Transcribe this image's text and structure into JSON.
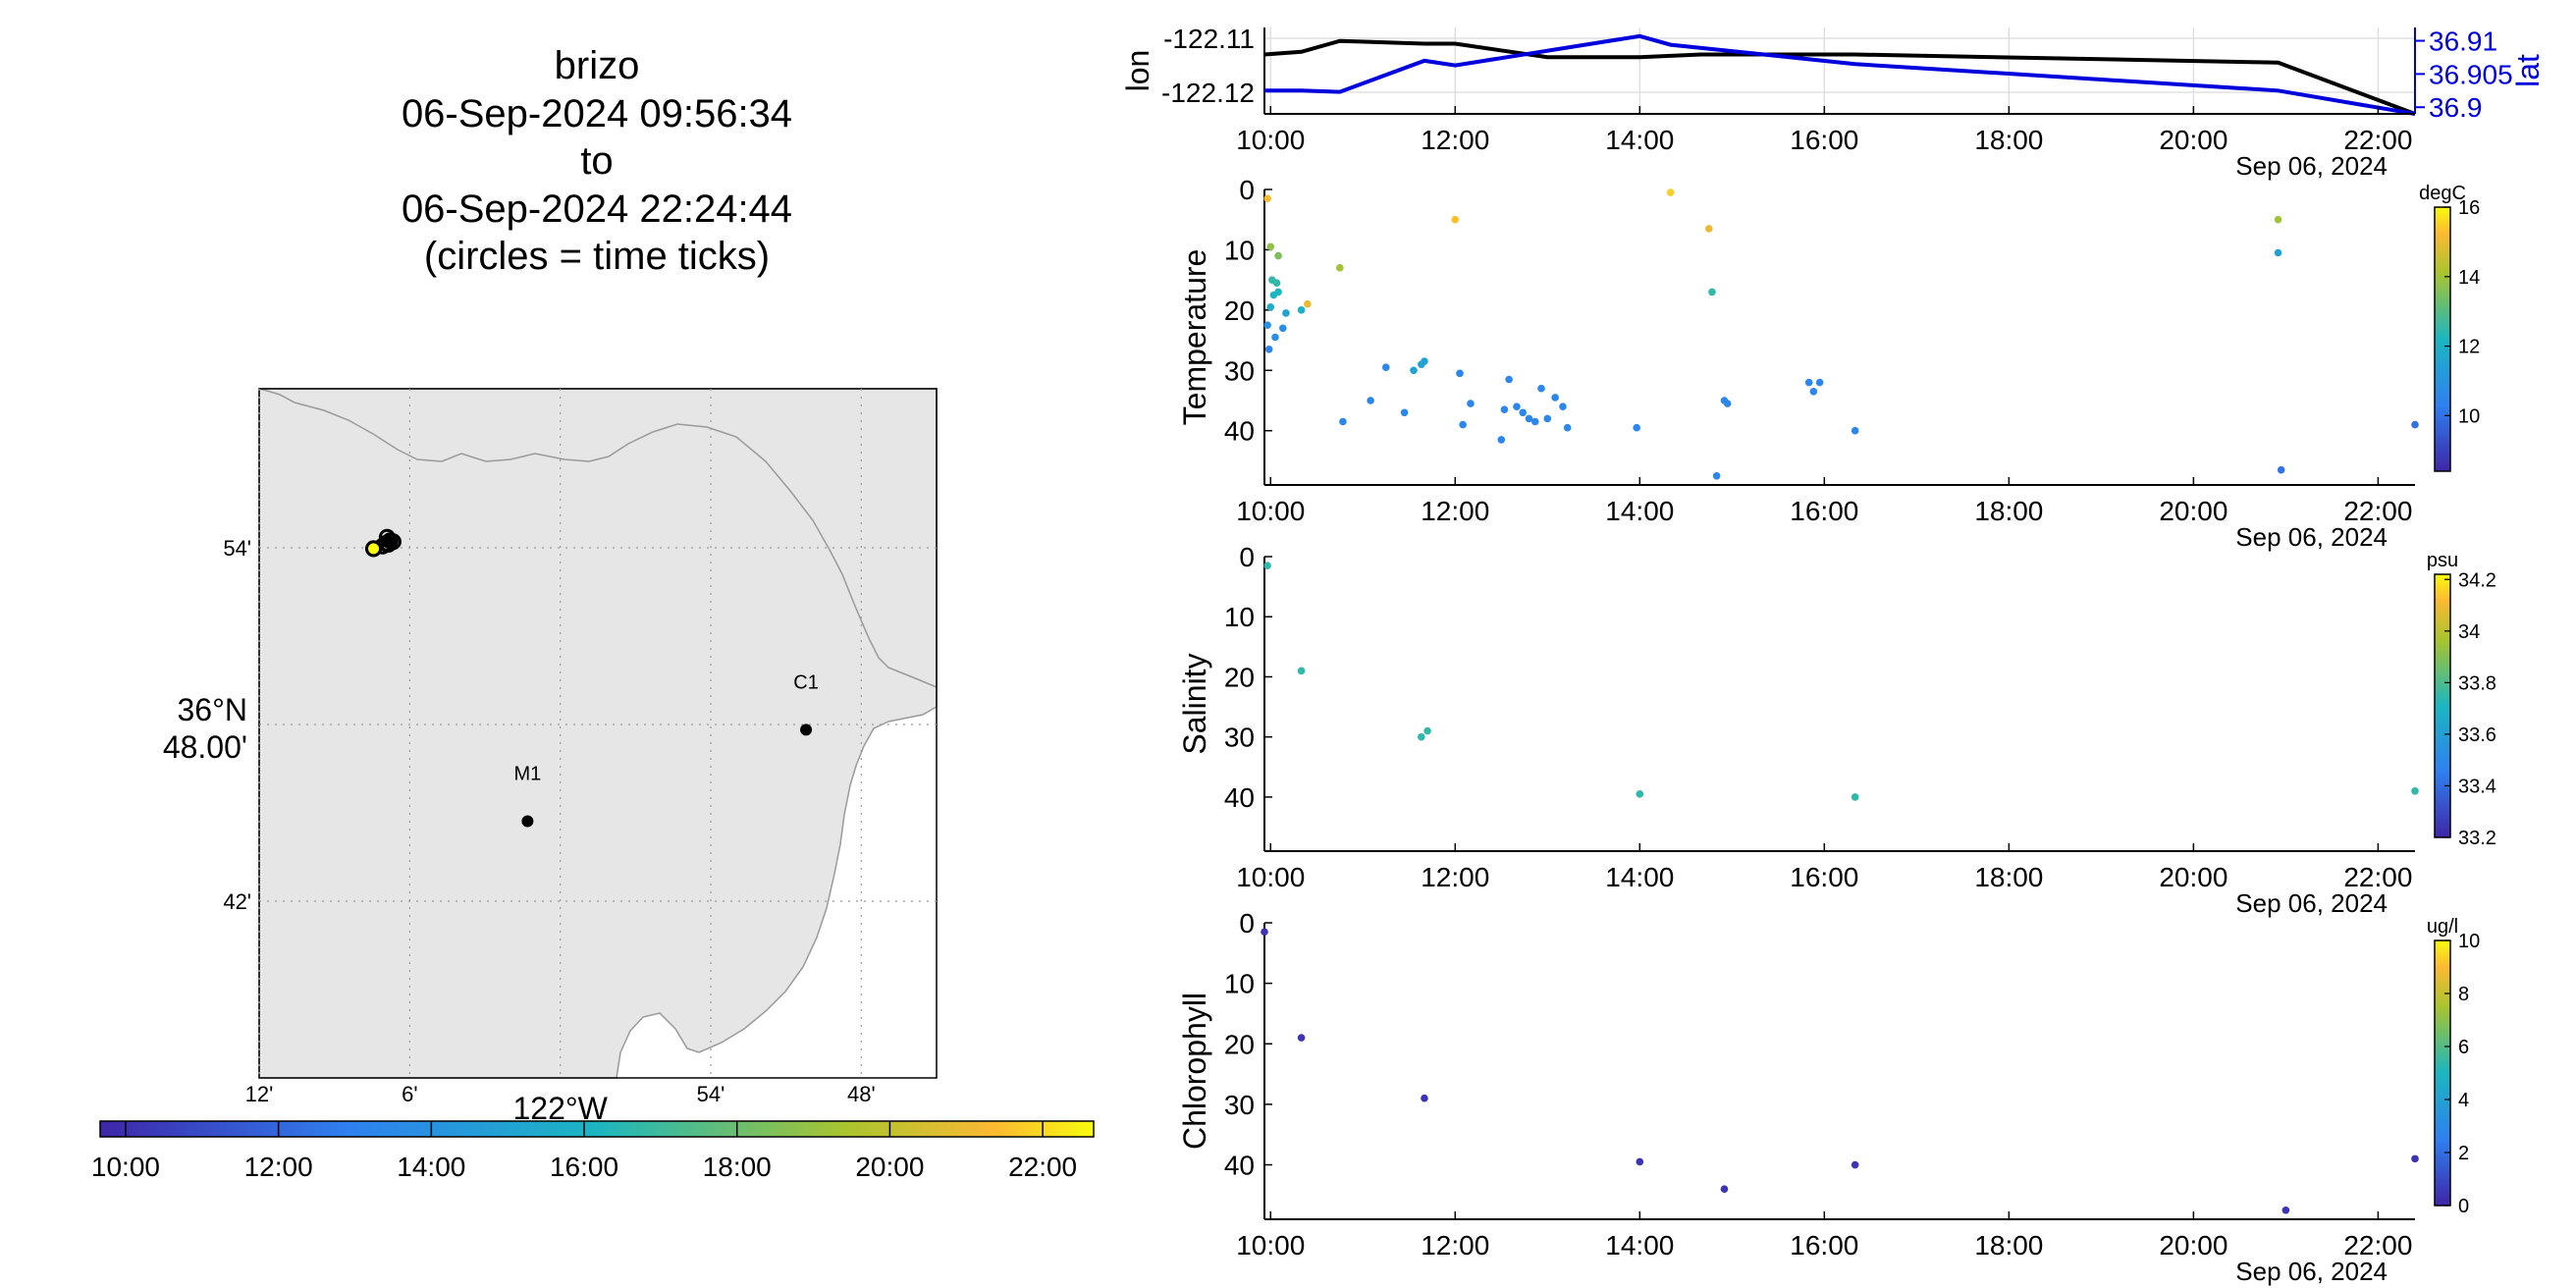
{
  "title": {
    "lines": [
      "brizo",
      "06-Sep-2024 09:56:34",
      "to",
      "06-Sep-2024 22:24:44",
      "(circles = time ticks)"
    ]
  },
  "map": {
    "lat_ticks": [
      "54'",
      "36°N 48.00'",
      "42'"
    ],
    "lat_values": [
      36.9,
      36.8,
      36.7
    ],
    "lon_ticks": [
      "12'",
      "6'",
      "122°W",
      "54'",
      "48'"
    ],
    "lon_values": [
      -122.2,
      -122.1,
      -122.0,
      -121.9,
      -121.8
    ],
    "lon_range": [
      -122.2,
      -121.75
    ],
    "lat_range": [
      36.6,
      36.99
    ],
    "stations": [
      {
        "name": "M1",
        "lon": -122.0217,
        "lat": 36.7453
      },
      {
        "name": "C1",
        "lon": -121.8367,
        "lat": 36.797
      }
    ],
    "track": [
      {
        "lon": -122.115,
        "lat": 36.906
      },
      {
        "lon": -122.113,
        "lat": 36.905
      },
      {
        "lon": -122.111,
        "lat": 36.903
      },
      {
        "lon": -122.112,
        "lat": 36.902
      },
      {
        "lon": -122.114,
        "lat": 36.903
      },
      {
        "lon": -122.116,
        "lat": 36.9025
      },
      {
        "lon": -122.124,
        "lat": 36.8995
      }
    ],
    "time_ticks": [
      {
        "lon": -122.115,
        "lat": 36.906
      },
      {
        "lon": -122.113,
        "lat": 36.904
      },
      {
        "lon": -122.111,
        "lat": 36.9035
      },
      {
        "lon": -122.114,
        "lat": 36.902
      },
      {
        "lon": -122.116,
        "lat": 36.9025
      },
      {
        "lon": -122.118,
        "lat": 36.901
      },
      {
        "lon": -122.124,
        "lat": 36.8995
      }
    ],
    "colorbar": {
      "ticks": [
        "10:00",
        "12:00",
        "14:00",
        "16:00",
        "18:00",
        "20:00",
        "22:00"
      ]
    }
  },
  "chart_data": [
    {
      "type": "line",
      "name": "position",
      "x_ticks": [
        "10:00",
        "12:00",
        "14:00",
        "16:00",
        "18:00",
        "20:00",
        "22:00"
      ],
      "x_range": [
        "09:56",
        "22:24"
      ],
      "date_label": "Sep 06, 2024",
      "left_axis": {
        "label": "lon",
        "ticks": [
          "-122.11",
          "-122.12"
        ],
        "range": [
          -122.124,
          -122.108
        ]
      },
      "right_axis": {
        "label": "lat",
        "ticks": [
          "36.91",
          "36.905",
          "36.9"
        ],
        "range": [
          36.899,
          36.912
        ],
        "color": "#0000dd"
      },
      "series": [
        {
          "name": "lon",
          "color": "#000000",
          "axis": "left",
          "points": [
            [
              "09:56",
              -122.113
            ],
            [
              "10:20",
              -122.1125
            ],
            [
              "10:45",
              -122.1105
            ],
            [
              "11:40",
              -122.111
            ],
            [
              "12:00",
              -122.111
            ],
            [
              "13:00",
              -122.1135
            ],
            [
              "14:00",
              -122.1135
            ],
            [
              "14:40",
              -122.113
            ],
            [
              "16:20",
              -122.113
            ],
            [
              "20:55",
              -122.1145
            ],
            [
              "22:24",
              -122.124
            ]
          ]
        },
        {
          "name": "lat",
          "color": "#0000dd",
          "axis": "right",
          "points": [
            [
              "09:56",
              36.9025
            ],
            [
              "10:20",
              36.9025
            ],
            [
              "10:45",
              36.9023
            ],
            [
              "11:40",
              36.907
            ],
            [
              "12:00",
              36.9063
            ],
            [
              "14:00",
              36.9107
            ],
            [
              "14:20",
              36.9094
            ],
            [
              "16:20",
              36.9065
            ],
            [
              "20:55",
              36.9025
            ],
            [
              "22:24",
              36.899
            ]
          ]
        }
      ]
    },
    {
      "type": "scatter",
      "name": "temperature",
      "ylabel": "Temperature",
      "units": "degC",
      "y_ticks": [
        "0",
        "10",
        "20",
        "30",
        "40"
      ],
      "y_range": [
        0,
        49
      ],
      "x_ticks": [
        "10:00",
        "12:00",
        "14:00",
        "16:00",
        "18:00",
        "20:00",
        "22:00"
      ],
      "date_label": "Sep 06, 2024",
      "colorbar": {
        "ticks": [
          "16",
          "14",
          "12",
          "10"
        ],
        "range": [
          8.4,
          16
        ]
      },
      "points": [
        [
          "09:58",
          1.5,
          15.2
        ],
        [
          "10:00",
          9.5,
          13.8
        ],
        [
          "10:05",
          11,
          13.5
        ],
        [
          "10:01",
          15,
          12.5
        ],
        [
          "10:04",
          15.5,
          12.5
        ],
        [
          "10:02",
          17.5,
          12.2
        ],
        [
          "10:00",
          19.5,
          11.9
        ],
        [
          "10:05",
          17,
          12.2
        ],
        [
          "10:20",
          20,
          12.0
        ],
        [
          "10:10",
          20.5,
          11.5
        ],
        [
          "10:24",
          19,
          15.0
        ],
        [
          "09:58",
          22.5,
          10.9
        ],
        [
          "10:08",
          23,
          10.8
        ],
        [
          "10:03",
          24.5,
          10.8
        ],
        [
          "09:59",
          26.5,
          10.5
        ],
        [
          "10:45",
          13,
          14.0
        ],
        [
          "10:47",
          38.5,
          10.5
        ],
        [
          "11:05",
          35,
          10.5
        ],
        [
          "11:15",
          29.5,
          10.5
        ],
        [
          "11:27",
          37,
          10.5
        ],
        [
          "11:33",
          30,
          11.5
        ],
        [
          "11:38",
          29,
          11.5
        ],
        [
          "11:40",
          28.5,
          11.5
        ],
        [
          "12:00",
          5,
          15.3
        ],
        [
          "12:03",
          30.5,
          10.5
        ],
        [
          "12:05",
          39,
          10.5
        ],
        [
          "12:10",
          35.5,
          10.5
        ],
        [
          "12:30",
          41.5,
          10.5
        ],
        [
          "12:32",
          36.5,
          10.5
        ],
        [
          "12:35",
          31.5,
          10.5
        ],
        [
          "12:40",
          36,
          10.5
        ],
        [
          "12:44",
          37,
          10.5
        ],
        [
          "12:48",
          38,
          10.5
        ],
        [
          "12:52",
          38.5,
          10.5
        ],
        [
          "12:56",
          33,
          10.5
        ],
        [
          "13:00",
          38,
          10.5
        ],
        [
          "13:05",
          34.5,
          10.5
        ],
        [
          "13:10",
          36,
          10.5
        ],
        [
          "13:13",
          39.5,
          10.5
        ],
        [
          "13:58",
          39.5,
          10.5
        ],
        [
          "14:20",
          0.5,
          15.5
        ],
        [
          "14:45",
          6.5,
          15.0
        ],
        [
          "14:47",
          17,
          12.5
        ],
        [
          "14:50",
          47.5,
          10.5
        ],
        [
          "14:55",
          35,
          10.5
        ],
        [
          "14:57",
          35.5,
          10.5
        ],
        [
          "15:50",
          32,
          10.5
        ],
        [
          "15:53",
          33.5,
          10.5
        ],
        [
          "15:57",
          32,
          10.5
        ],
        [
          "16:20",
          40,
          10.5
        ],
        [
          "20:55",
          5,
          14.0
        ],
        [
          "20:55",
          10.5,
          11.5
        ],
        [
          "20:57",
          46.5,
          10.0
        ],
        [
          "22:24",
          39,
          10.0
        ]
      ]
    },
    {
      "type": "scatter",
      "name": "salinity",
      "ylabel": "Salinity",
      "units": "psu",
      "y_ticks": [
        "0",
        "10",
        "20",
        "30",
        "40"
      ],
      "y_range": [
        0,
        49
      ],
      "x_ticks": [
        "10:00",
        "12:00",
        "14:00",
        "16:00",
        "18:00",
        "20:00",
        "22:00"
      ],
      "date_label": "Sep 06, 2024",
      "colorbar": {
        "ticks": [
          "34.2",
          "34",
          "33.8",
          "33.6",
          "33.4",
          "33.2"
        ],
        "range": [
          33.2,
          34.22
        ]
      },
      "points": [
        [
          "09:58",
          1.5,
          33.75
        ],
        [
          "10:20",
          19,
          33.75
        ],
        [
          "11:38",
          30,
          33.75
        ],
        [
          "11:42",
          29,
          33.75
        ],
        [
          "14:00",
          39.5,
          33.75
        ],
        [
          "16:20",
          40,
          33.75
        ],
        [
          "22:24",
          39,
          33.75
        ]
      ]
    },
    {
      "type": "scatter",
      "name": "chlorophyll",
      "ylabel": "Chlorophyll",
      "units": "ug/l",
      "y_ticks": [
        "0",
        "10",
        "20",
        "30",
        "40"
      ],
      "y_range": [
        0,
        49
      ],
      "x_ticks": [
        "10:00",
        "12:00",
        "14:00",
        "16:00",
        "18:00",
        "20:00",
        "22:00"
      ],
      "date_label": "Sep 06, 2024",
      "colorbar": {
        "ticks": [
          "10",
          "8",
          "6",
          "4",
          "2",
          "0"
        ],
        "range": [
          0,
          10
        ]
      },
      "points": [
        [
          "09:56",
          1.5,
          0.4
        ],
        [
          "10:20",
          19,
          0.4
        ],
        [
          "11:40",
          29,
          0.4
        ],
        [
          "14:00",
          39.5,
          0.4
        ],
        [
          "14:55",
          44,
          0.4
        ],
        [
          "16:20",
          40,
          0.4
        ],
        [
          "21:00",
          47.5,
          0.4
        ],
        [
          "22:24",
          39,
          0.4
        ]
      ]
    }
  ]
}
